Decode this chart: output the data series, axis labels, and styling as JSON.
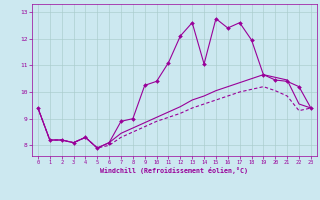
{
  "xlabel": "Windchill (Refroidissement éolien,°C)",
  "background_color": "#cce8f0",
  "line_color": "#990099",
  "grid_color": "#aacccc",
  "xlim": [
    -0.5,
    23.5
  ],
  "ylim": [
    7.6,
    13.3
  ],
  "xticks": [
    0,
    1,
    2,
    3,
    4,
    5,
    6,
    7,
    8,
    9,
    10,
    11,
    12,
    13,
    14,
    15,
    16,
    17,
    18,
    19,
    20,
    21,
    22,
    23
  ],
  "yticks": [
    8,
    9,
    10,
    11,
    12,
    13
  ],
  "series1_x": [
    0,
    1,
    2,
    3,
    4,
    5,
    6,
    7,
    8,
    9,
    10,
    11,
    12,
    13,
    14,
    15,
    16,
    17,
    18,
    19,
    20,
    21,
    22,
    23
  ],
  "series1_y": [
    9.4,
    8.2,
    8.2,
    8.1,
    8.3,
    7.9,
    8.1,
    8.9,
    9.0,
    10.25,
    10.4,
    11.1,
    12.1,
    12.6,
    11.05,
    12.75,
    12.4,
    12.6,
    11.95,
    10.65,
    10.45,
    10.4,
    10.2,
    9.4
  ],
  "series2_x": [
    0,
    1,
    2,
    3,
    4,
    5,
    6,
    7,
    8,
    9,
    10,
    11,
    12,
    13,
    14,
    15,
    16,
    17,
    18,
    19,
    20,
    21,
    22,
    23
  ],
  "series2_y": [
    9.4,
    8.2,
    8.2,
    8.1,
    8.3,
    7.9,
    8.1,
    8.45,
    8.65,
    8.85,
    9.05,
    9.25,
    9.45,
    9.7,
    9.85,
    10.05,
    10.2,
    10.35,
    10.5,
    10.65,
    10.55,
    10.45,
    9.55,
    9.4
  ],
  "series3_x": [
    0,
    1,
    2,
    3,
    4,
    5,
    6,
    7,
    8,
    9,
    10,
    11,
    12,
    13,
    14,
    15,
    16,
    17,
    18,
    19,
    20,
    21,
    22,
    23
  ],
  "series3_y": [
    9.4,
    8.2,
    8.2,
    8.1,
    8.3,
    7.9,
    8.0,
    8.3,
    8.5,
    8.7,
    8.9,
    9.05,
    9.2,
    9.4,
    9.55,
    9.7,
    9.85,
    10.0,
    10.1,
    10.2,
    10.05,
    9.85,
    9.3,
    9.4
  ]
}
